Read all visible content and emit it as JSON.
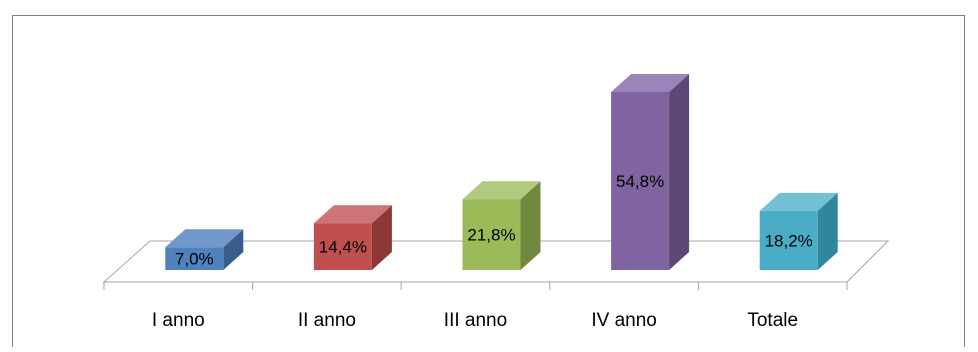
{
  "chart_data": {
    "type": "bar",
    "style": "3d-column",
    "categories": [
      "I anno",
      "II anno",
      "III anno",
      "IV anno",
      "Totale"
    ],
    "values": [
      7.0,
      14.4,
      21.8,
      54.8,
      18.2
    ],
    "value_labels": [
      "7,0%",
      "14,4%",
      "21,8%",
      "54,8%",
      "18,2%"
    ],
    "unit": "%",
    "title": "",
    "xlabel": "",
    "ylabel": "",
    "ylim": [
      0,
      60
    ],
    "grid": false,
    "legend": "none",
    "colors": {
      "front": [
        "#4F81BD",
        "#C0504D",
        "#9BBB59",
        "#8064A2",
        "#4BACC6"
      ],
      "top": [
        "#7197CB",
        "#CD7574",
        "#B1CA7D",
        "#9985B8",
        "#73C0D4"
      ],
      "side": [
        "#385D8A",
        "#8C3836",
        "#71893F",
        "#5C4776",
        "#31859C"
      ],
      "floor_stroke": "#A6A6A6",
      "border": "#7F7F7F",
      "text": "#000000"
    }
  }
}
